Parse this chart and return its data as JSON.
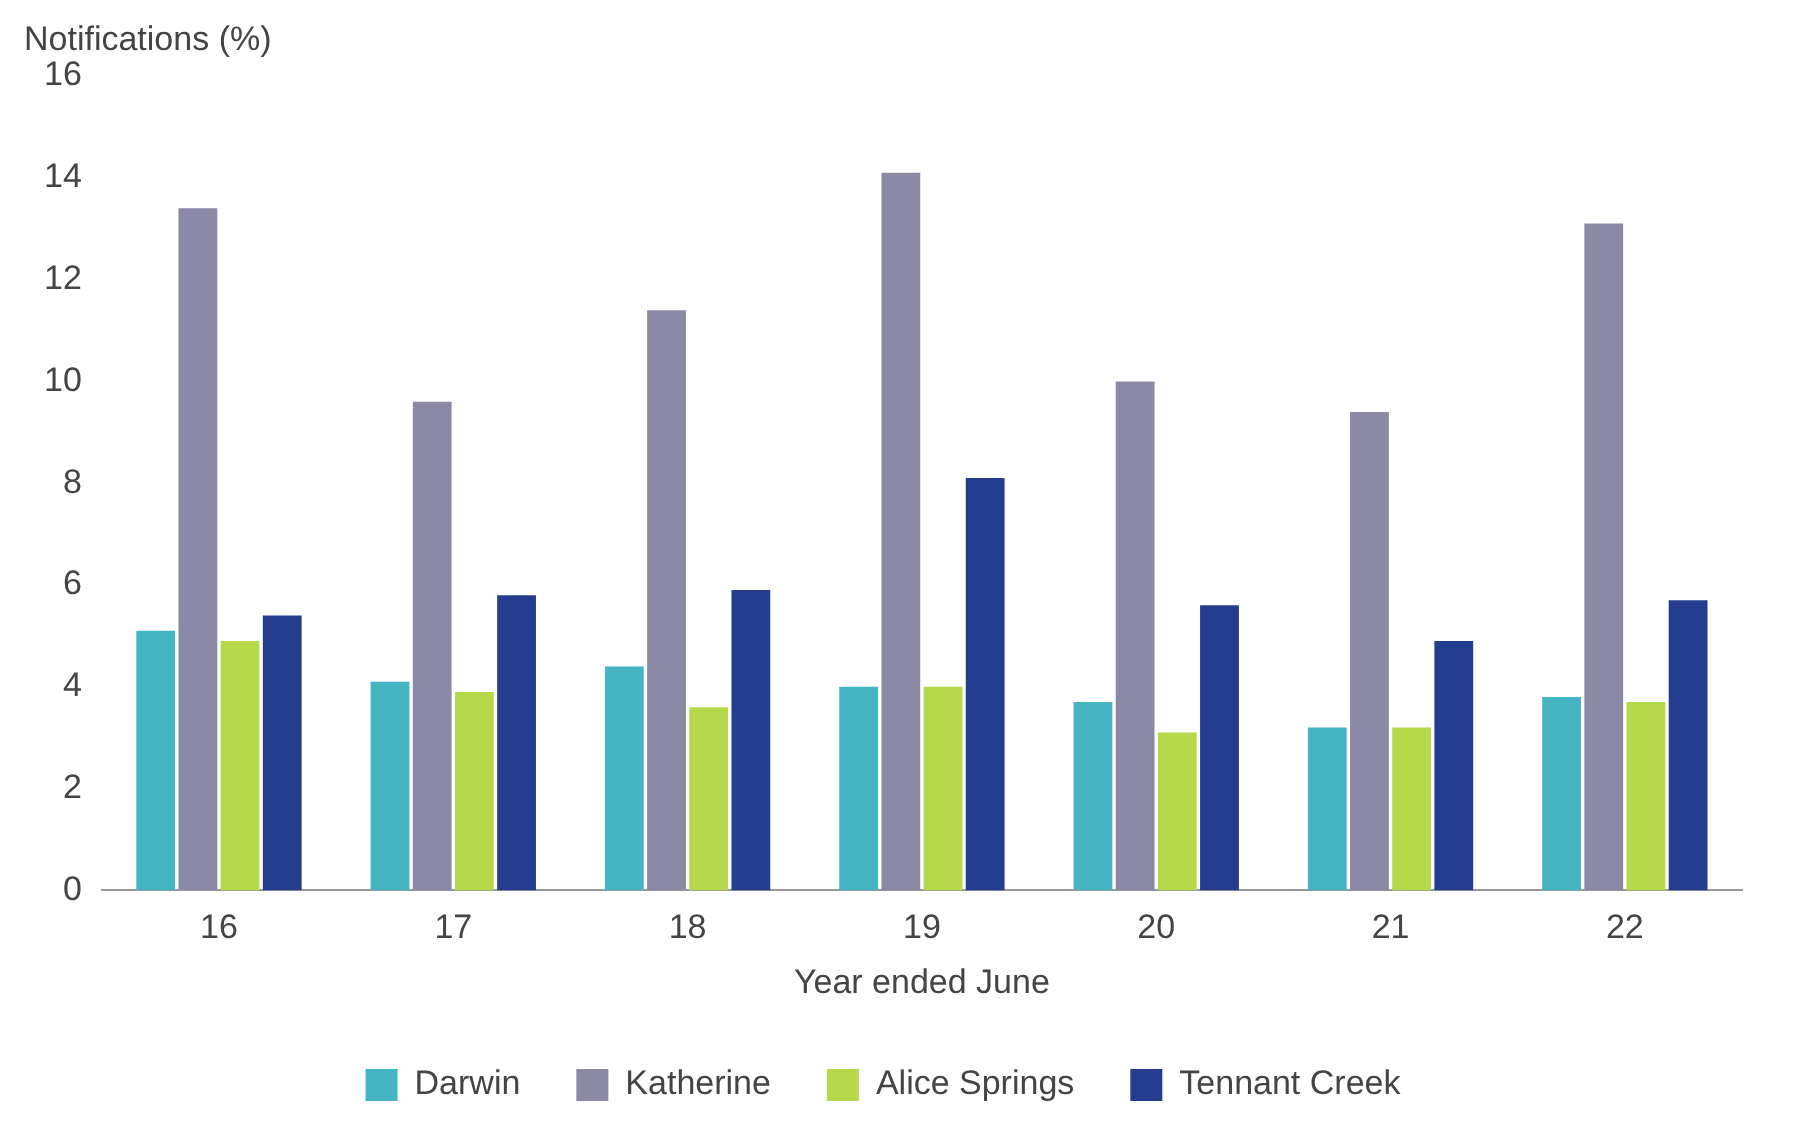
{
  "chart_data": {
    "type": "bar",
    "ylabel": "Notifications (%)",
    "xlabel": "Year ended June",
    "categories": [
      "16",
      "17",
      "18",
      "19",
      "20",
      "21",
      "22"
    ],
    "series": [
      {
        "name": "Darwin",
        "color": "#45b5c4",
        "values": [
          5.1,
          4.1,
          4.4,
          4.0,
          3.7,
          3.2,
          3.8
        ]
      },
      {
        "name": "Katherine",
        "color": "#8b89a6",
        "values": [
          13.4,
          9.6,
          11.4,
          14.1,
          10.0,
          9.4,
          13.1
        ]
      },
      {
        "name": "Alice Springs",
        "color": "#b5d94a",
        "values": [
          4.9,
          3.9,
          3.6,
          4.0,
          3.1,
          3.2,
          3.7
        ]
      },
      {
        "name": "Tennant Creek",
        "color": "#253d8f",
        "values": [
          5.4,
          5.8,
          5.9,
          8.1,
          5.6,
          4.9,
          5.7
        ]
      }
    ],
    "ylim": [
      0,
      16
    ],
    "yticks": [
      0,
      2,
      4,
      6,
      8,
      10,
      12,
      14,
      16
    ],
    "grid": false,
    "legend": "bottom"
  }
}
